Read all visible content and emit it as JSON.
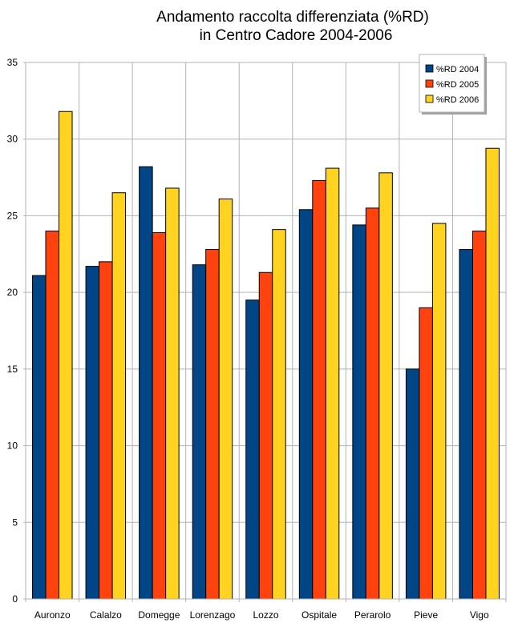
{
  "chart_data": {
    "type": "bar",
    "title_lines": [
      "Andamento raccolta differenziata (%RD)",
      "in Centro Cadore  2004-2006"
    ],
    "categories": [
      "Auronzo",
      "Calalzo",
      "Domegge",
      "Lorenzago",
      "Lozzo",
      "Ospitale",
      "Perarolo",
      "Pieve",
      "Vigo"
    ],
    "series": [
      {
        "name": "%RD 2004",
        "color": "#004586",
        "values": [
          21.1,
          21.7,
          28.2,
          21.8,
          19.5,
          25.4,
          24.4,
          15.0,
          22.8
        ]
      },
      {
        "name": "%RD 2005",
        "color": "#ff420e",
        "values": [
          24.0,
          22.0,
          23.9,
          22.8,
          21.3,
          27.3,
          25.5,
          19.0,
          24.0
        ]
      },
      {
        "name": "%RD 2006",
        "color": "#ffd320",
        "values": [
          31.8,
          26.5,
          26.8,
          26.1,
          24.1,
          28.1,
          27.8,
          24.5,
          29.4
        ]
      }
    ],
    "yticks": [
      0,
      5,
      10,
      15,
      20,
      25,
      30,
      35
    ],
    "ylim": [
      0,
      35
    ],
    "grid": true,
    "legend_position": "top-right"
  }
}
